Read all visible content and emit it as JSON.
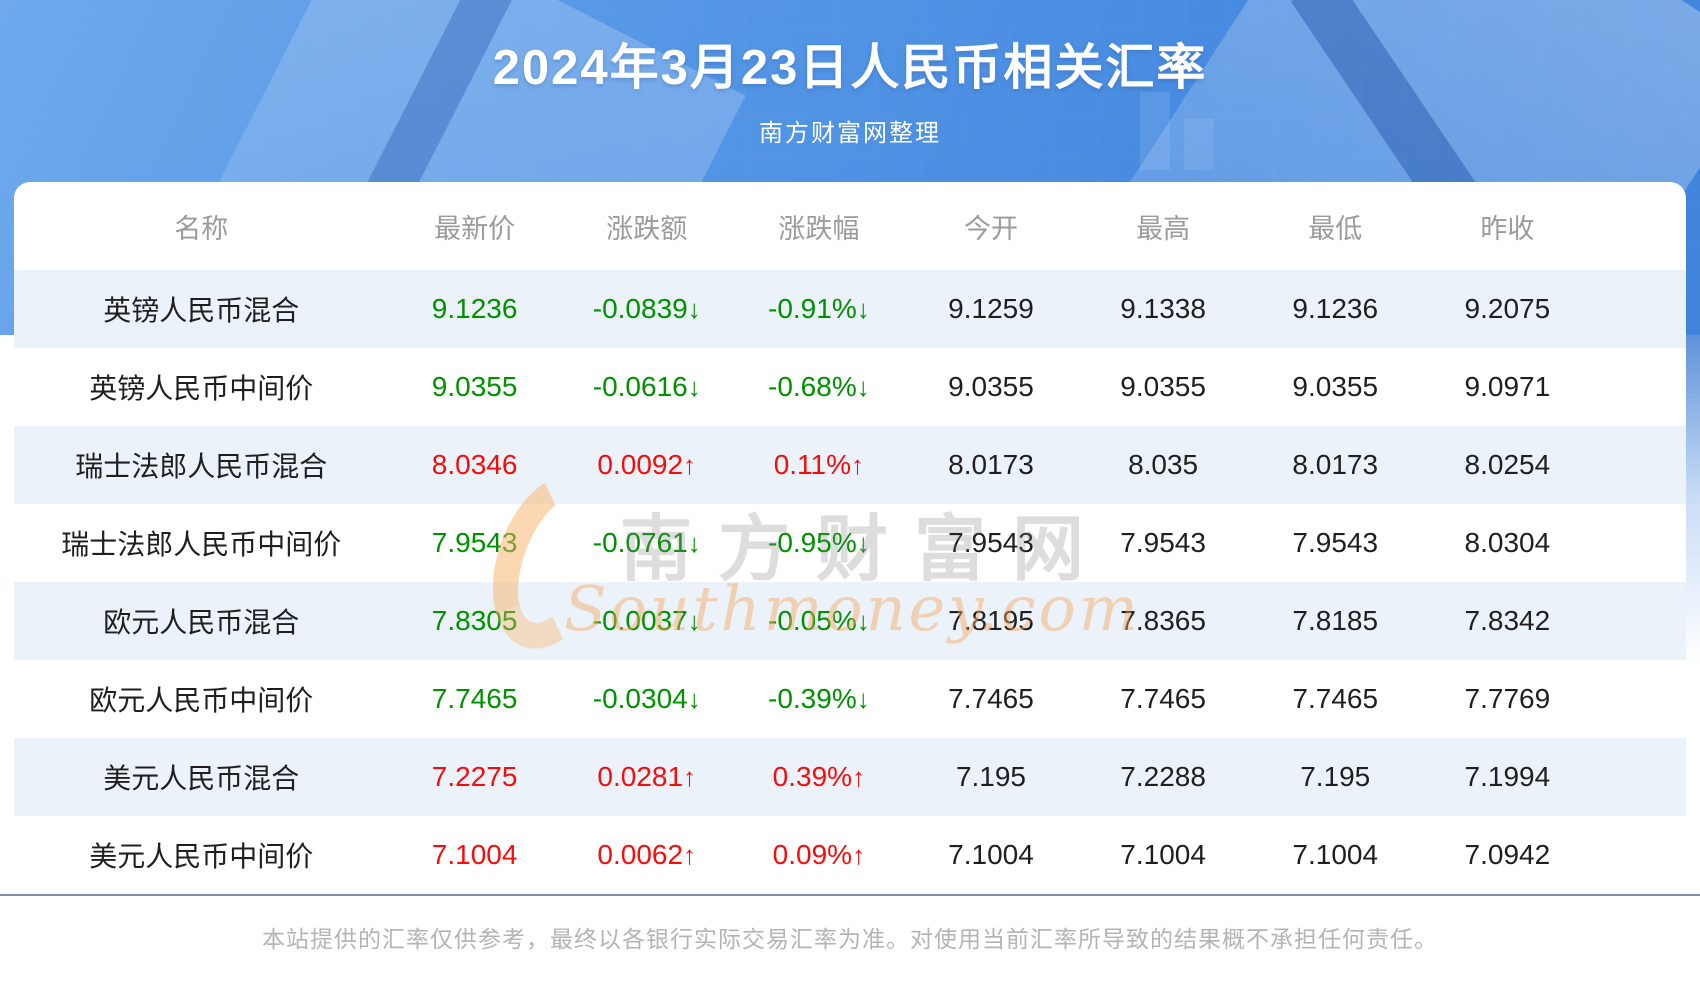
{
  "header": {
    "title": "2024年3月23日人民币相关汇率",
    "subtitle": "南方财富网整理"
  },
  "table": {
    "columns": [
      "名称",
      "最新价",
      "涨跌额",
      "涨跌幅",
      "今开",
      "最高",
      "最低",
      "昨收"
    ],
    "arrows": {
      "up": "↑",
      "down": "↓"
    },
    "rows": [
      {
        "name": "英镑人民币混合",
        "latest": "9.1236",
        "change": "-0.0839",
        "change_pct": "-0.91%",
        "open": "9.1259",
        "high": "9.1338",
        "low": "9.1236",
        "prev_close": "9.2075",
        "direction": "down"
      },
      {
        "name": "英镑人民币中间价",
        "latest": "9.0355",
        "change": "-0.0616",
        "change_pct": "-0.68%",
        "open": "9.0355",
        "high": "9.0355",
        "low": "9.0355",
        "prev_close": "9.0971",
        "direction": "down"
      },
      {
        "name": "瑞士法郎人民币混合",
        "latest": "8.0346",
        "change": "0.0092",
        "change_pct": "0.11%",
        "open": "8.0173",
        "high": "8.035",
        "low": "8.0173",
        "prev_close": "8.0254",
        "direction": "up"
      },
      {
        "name": "瑞士法郎人民币中间价",
        "latest": "7.9543",
        "change": "-0.0761",
        "change_pct": "-0.95%",
        "open": "7.9543",
        "high": "7.9543",
        "low": "7.9543",
        "prev_close": "8.0304",
        "direction": "down"
      },
      {
        "name": "欧元人民币混合",
        "latest": "7.8305",
        "change": "-0.0037",
        "change_pct": "-0.05%",
        "open": "7.8195",
        "high": "7.8365",
        "low": "7.8185",
        "prev_close": "7.8342",
        "direction": "down"
      },
      {
        "name": "欧元人民币中间价",
        "latest": "7.7465",
        "change": "-0.0304",
        "change_pct": "-0.39%",
        "open": "7.7465",
        "high": "7.7465",
        "low": "7.7465",
        "prev_close": "7.7769",
        "direction": "down"
      },
      {
        "name": "美元人民币混合",
        "latest": "7.2275",
        "change": "0.0281",
        "change_pct": "0.39%",
        "open": "7.195",
        "high": "7.2288",
        "low": "7.195",
        "prev_close": "7.1994",
        "direction": "up"
      },
      {
        "name": "美元人民币中间价",
        "latest": "7.1004",
        "change": "0.0062",
        "change_pct": "0.09%",
        "open": "7.1004",
        "high": "7.1004",
        "low": "7.1004",
        "prev_close": "7.0942",
        "direction": "up"
      }
    ]
  },
  "watermark": {
    "cn": "南方财富网",
    "en": "Southmoney.com"
  },
  "footer": {
    "disclaimer": "本站提供的汇率仅供参考，最终以各银行实际交易汇率为准。对使用当前汇率所导致的结果概不承担任何责任。"
  },
  "colors": {
    "up_red": "#f50d0d",
    "down_green": "#009100",
    "banner_blue": "#468ae0",
    "stripe_blue": "#ecf2fa",
    "divider": "#7e94ad"
  },
  "chart_data": {
    "type": "table",
    "title": "2024年3月23日人民币相关汇率",
    "subtitle": "南方财富网整理",
    "columns": [
      "名称",
      "最新价",
      "涨跌额",
      "涨跌幅",
      "今开",
      "最高",
      "最低",
      "昨收"
    ],
    "rows": [
      [
        "英镑人民币混合",
        9.1236,
        -0.0839,
        "-0.91%",
        9.1259,
        9.1338,
        9.1236,
        9.2075
      ],
      [
        "英镑人民币中间价",
        9.0355,
        -0.0616,
        "-0.68%",
        9.0355,
        9.0355,
        9.0355,
        9.0971
      ],
      [
        "瑞士法郎人民币混合",
        8.0346,
        0.0092,
        "0.11%",
        8.0173,
        8.035,
        8.0173,
        8.0254
      ],
      [
        "瑞士法郎人民币中间价",
        7.9543,
        -0.0761,
        "-0.95%",
        7.9543,
        7.9543,
        7.9543,
        8.0304
      ],
      [
        "欧元人民币混合",
        7.8305,
        -0.0037,
        "-0.05%",
        7.8195,
        7.8365,
        7.8185,
        7.8342
      ],
      [
        "欧元人民币中间价",
        7.7465,
        -0.0304,
        "-0.39%",
        7.7465,
        7.7465,
        7.7465,
        7.7769
      ],
      [
        "美元人民币混合",
        7.2275,
        0.0281,
        "0.39%",
        7.195,
        7.2288,
        7.195,
        7.1994
      ],
      [
        "美元人民币中间价",
        7.1004,
        0.0062,
        "0.09%",
        7.1004,
        7.1004,
        7.1004,
        7.0942
      ]
    ]
  }
}
